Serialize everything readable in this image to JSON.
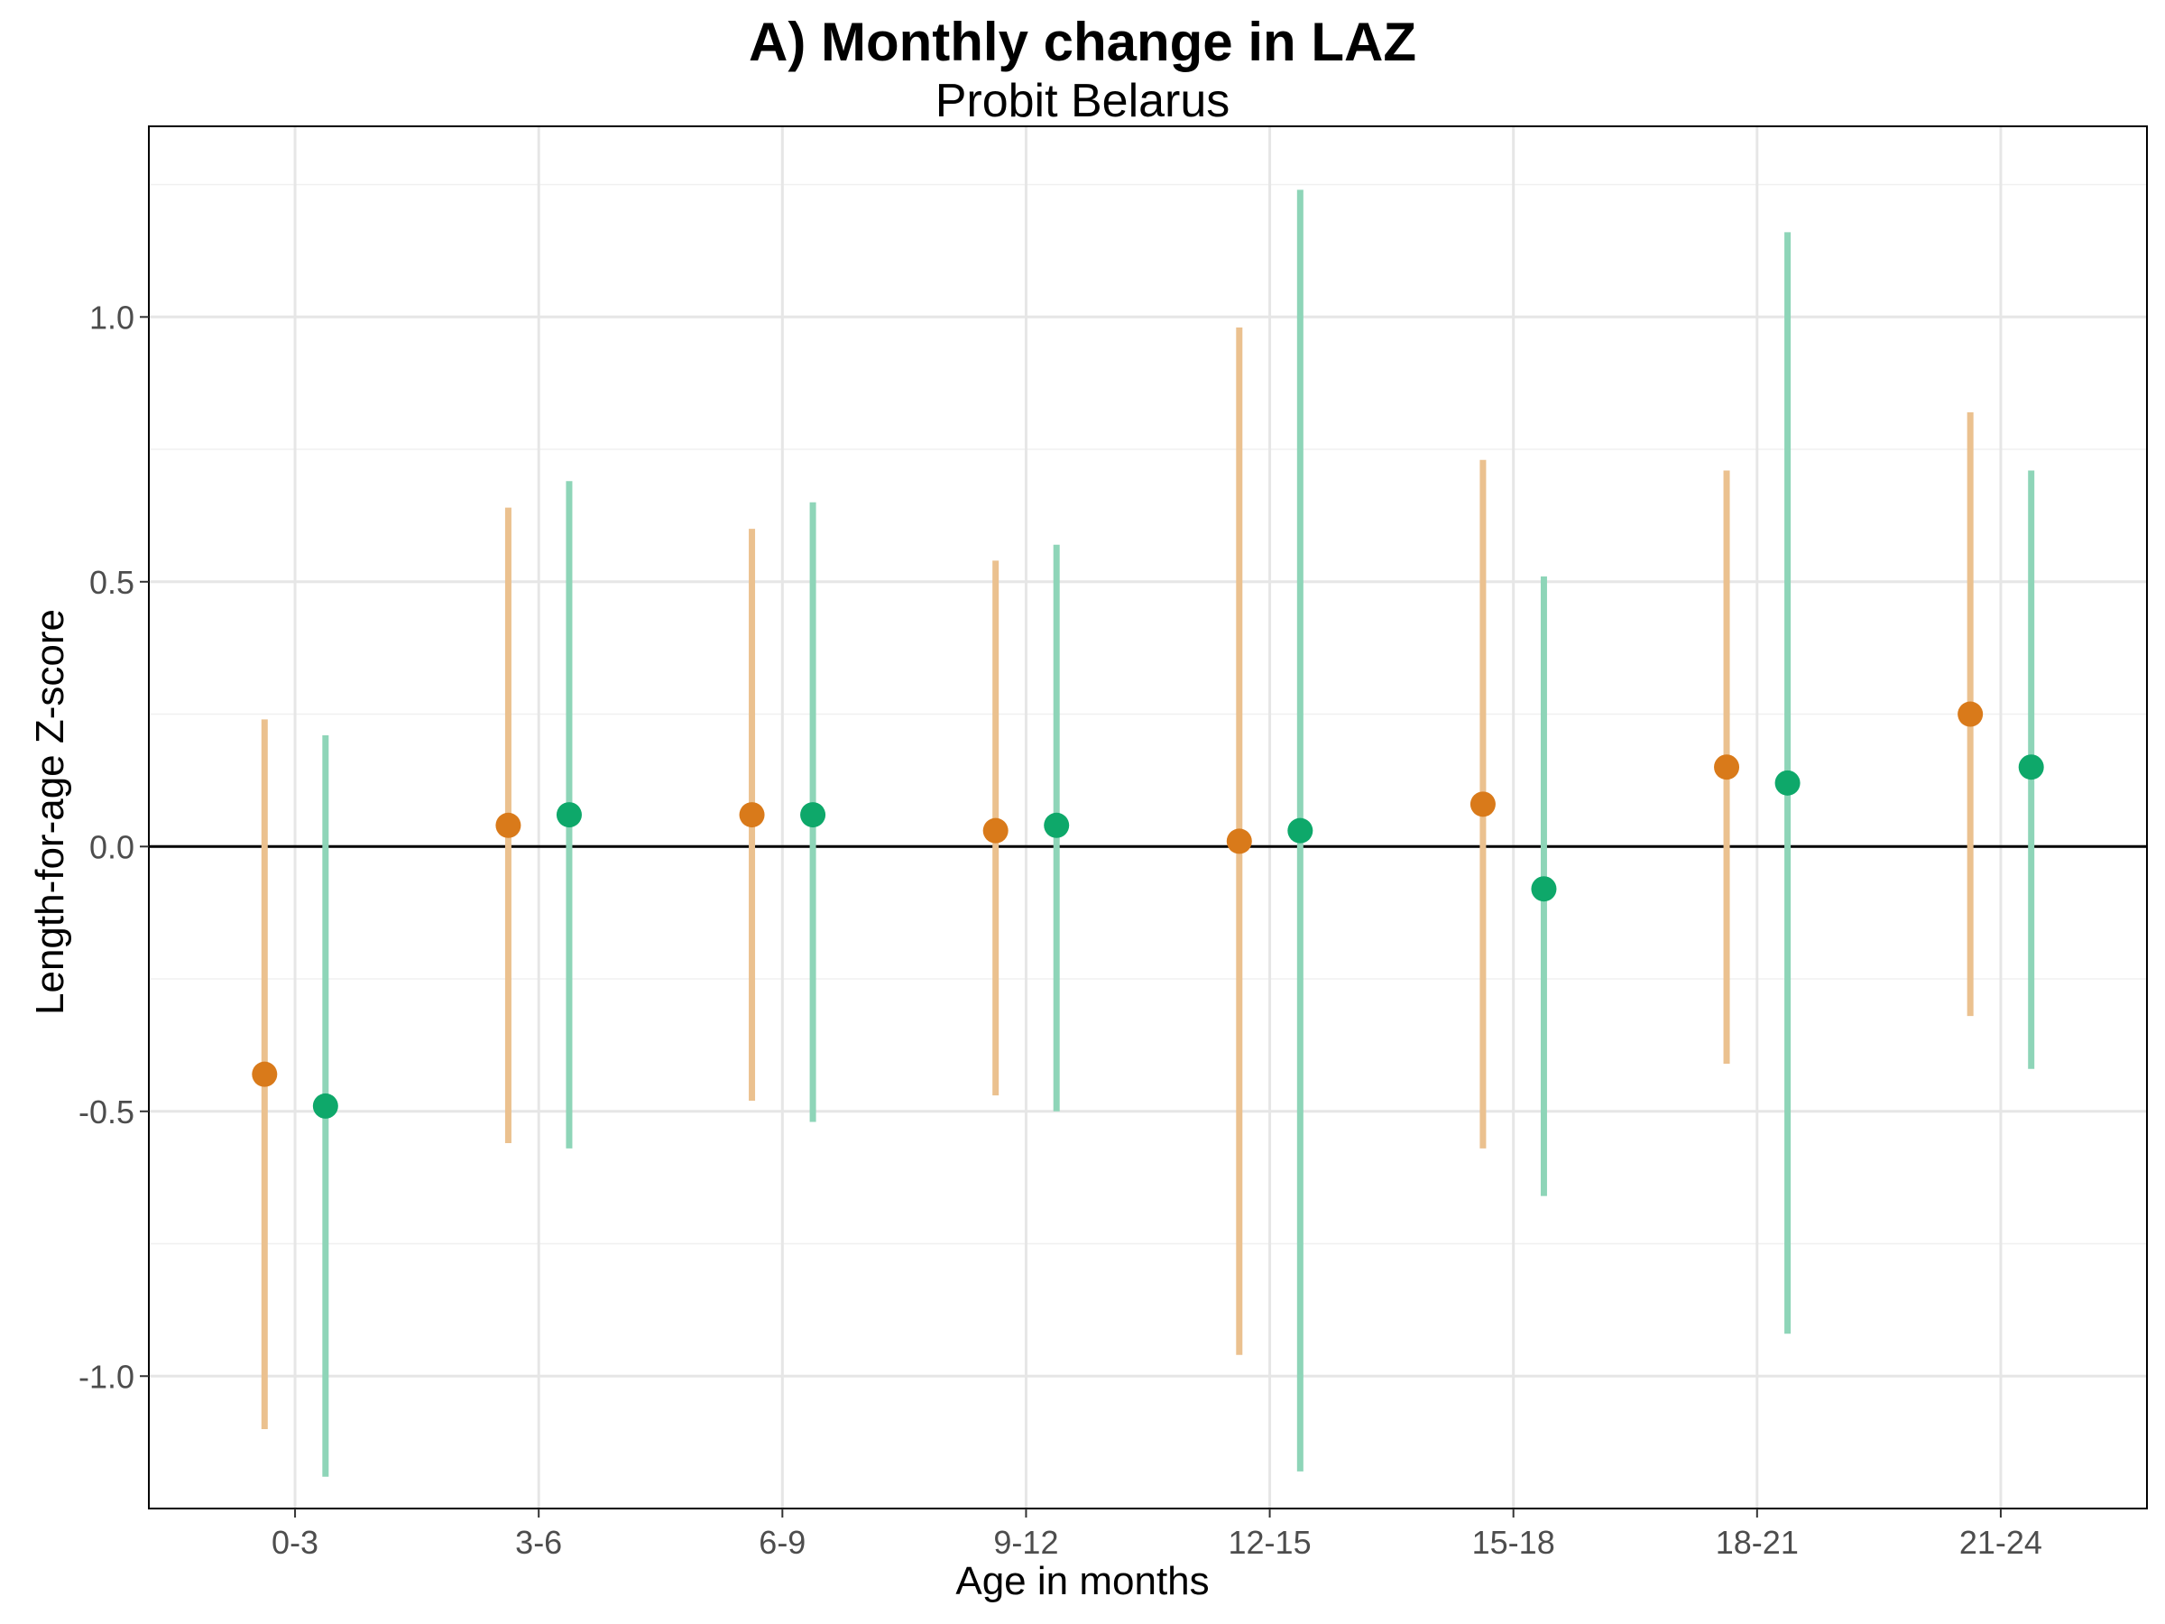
{
  "chart_data": {
    "type": "scatter",
    "title": "A) Monthly change in LAZ",
    "subtitle": "Probit Belarus",
    "xlabel": "Age in months",
    "ylabel": "Length-for-age Z-score",
    "categories": [
      "0-3",
      "3-6",
      "6-9",
      "9-12",
      "12-15",
      "15-18",
      "18-21",
      "21-24"
    ],
    "ylim": [
      -1.25,
      1.36
    ],
    "yticks": [
      "-1.0",
      "-0.5",
      "0.0",
      "0.5",
      "1.0"
    ],
    "ytick_values": [
      -1.0,
      -0.5,
      0.0,
      0.5,
      1.0
    ],
    "reference_line": 0,
    "grid": true,
    "series": [
      {
        "color": "#D97A1A",
        "error_color": "#EBC18F",
        "values": [
          -0.43,
          0.04,
          0.06,
          0.03,
          0.01,
          0.08,
          0.15,
          0.25
        ],
        "lower": [
          -1.1,
          -0.56,
          -0.48,
          -0.47,
          -0.96,
          -0.57,
          -0.41,
          -0.32
        ],
        "upper": [
          0.24,
          0.64,
          0.6,
          0.54,
          0.98,
          0.73,
          0.71,
          0.82
        ]
      },
      {
        "color": "#0EA86A",
        "error_color": "#8ED5B8",
        "values": [
          -0.49,
          0.06,
          0.06,
          0.04,
          0.03,
          -0.08,
          0.12,
          0.15
        ],
        "lower": [
          -1.19,
          -0.57,
          -0.52,
          -0.5,
          -1.18,
          -0.66,
          -0.92,
          -0.42
        ],
        "upper": [
          0.21,
          0.69,
          0.65,
          0.57,
          1.24,
          0.51,
          1.16,
          0.71
        ]
      }
    ]
  }
}
